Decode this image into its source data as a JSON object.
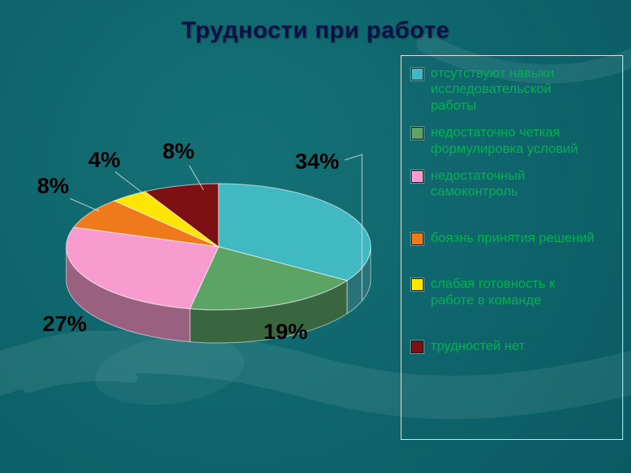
{
  "slide": {
    "title": "Трудности при работе"
  },
  "chart_data": {
    "type": "pie",
    "style": "3d-pie",
    "title": "Трудности при работе",
    "legend_position": "right",
    "total": 100,
    "series": [
      {
        "label": "отсутствуют навыки исследовательской работы",
        "value": 34,
        "pct_label": "34%",
        "color": "#41b9c2"
      },
      {
        "label": "недостаточно четкая формулировка условий",
        "value": 19,
        "pct_label": "19%",
        "color": "#5ca466"
      },
      {
        "label": "недостаточный самоконтроль",
        "value": 27,
        "pct_label": "27%",
        "color": "#f89bcf"
      },
      {
        "label": "боязнь принятия решений",
        "value": 8,
        "pct_label": "8%",
        "color": "#ef7a1b"
      },
      {
        "label": "слабая готовность к работе в команде",
        "value": 4,
        "pct_label": "4%",
        "color": "#ffe600"
      },
      {
        "label": "трудностей нет",
        "value": 8,
        "pct_label": "8%",
        "color": "#7c1012"
      }
    ]
  },
  "colors": {
    "background": "#0f676d",
    "title_text": "#0a1147",
    "legend_text": "#00b251",
    "legend_border": "#d9e9e8",
    "pct_label_text": "#000000"
  }
}
